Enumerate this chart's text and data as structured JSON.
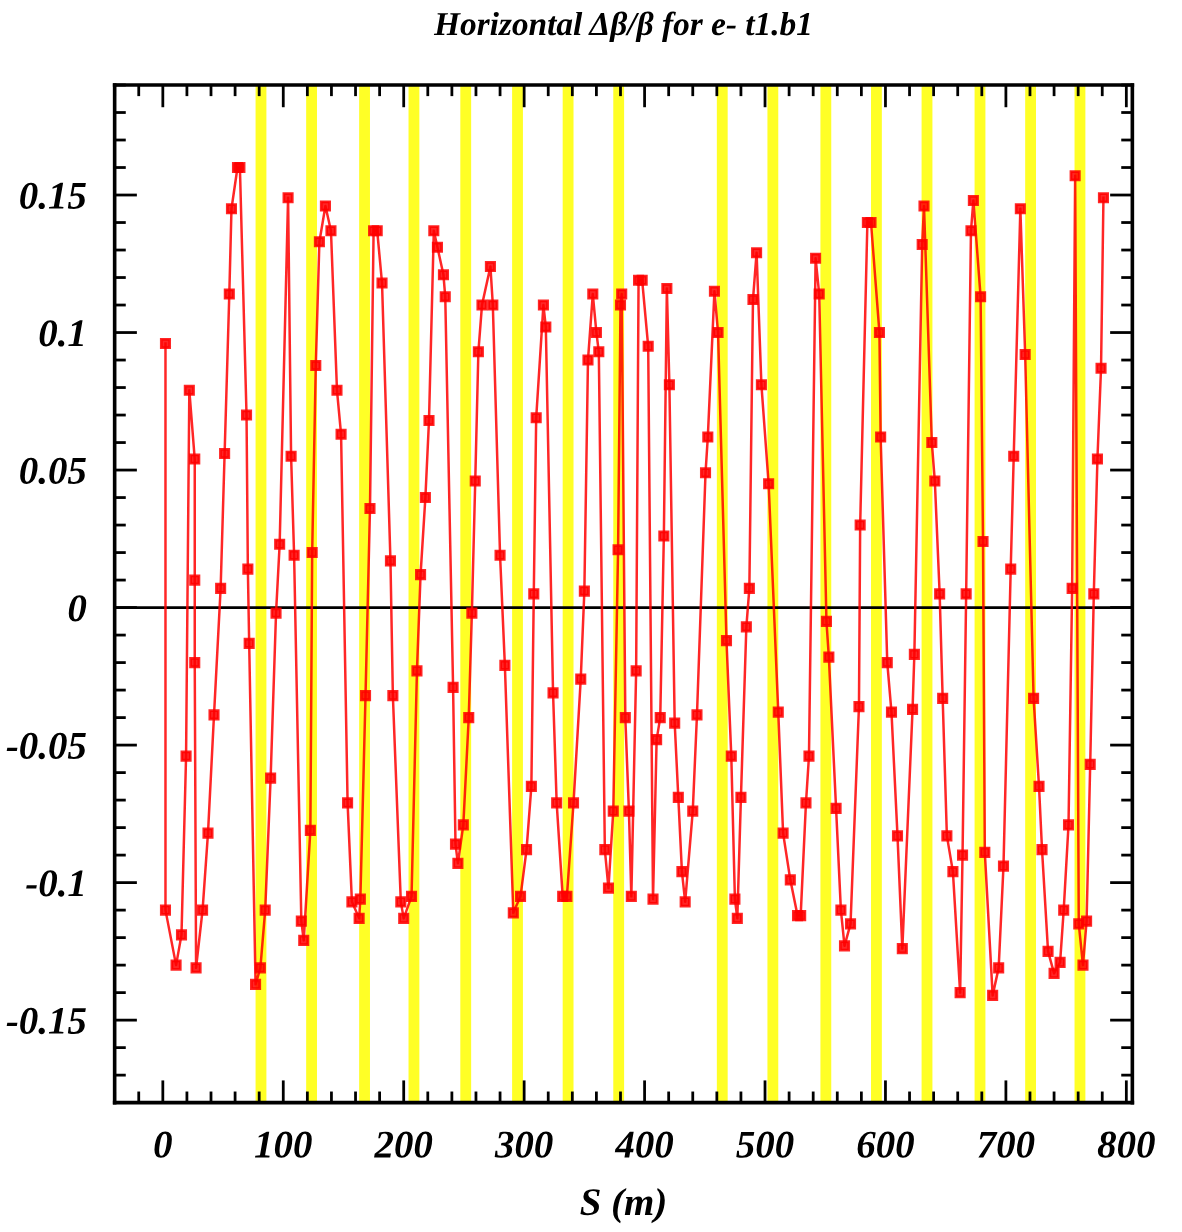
{
  "chart_data": {
    "type": "line",
    "title": "Horizontal Δβ/β for e- t1.b1",
    "xlabel": "S (m)",
    "xlim": [
      -40,
      805
    ],
    "ylim": [
      -0.18,
      0.19
    ],
    "xticks": [
      0,
      100,
      200,
      300,
      400,
      500,
      600,
      700,
      800
    ],
    "yticks": [
      -0.15,
      -0.1,
      -0.05,
      0,
      0.05,
      0.1,
      0.15
    ],
    "grid": false,
    "legend": false,
    "marker": "square",
    "line_style": "solid",
    "ref_lines": [
      {
        "axis": "y",
        "value": 0,
        "color": "#000000"
      }
    ],
    "bands": [
      {
        "axis": "x",
        "from": 77,
        "to": 86,
        "color": "#ffff00"
      },
      {
        "axis": "x",
        "from": 119,
        "to": 128,
        "color": "#ffff00"
      },
      {
        "axis": "x",
        "from": 163,
        "to": 172,
        "color": "#ffff00"
      },
      {
        "axis": "x",
        "from": 204,
        "to": 213,
        "color": "#ffff00"
      },
      {
        "axis": "x",
        "from": 247,
        "to": 256,
        "color": "#ffff00"
      },
      {
        "axis": "x",
        "from": 290,
        "to": 299,
        "color": "#ffff00"
      },
      {
        "axis": "x",
        "from": 332,
        "to": 341,
        "color": "#ffff00"
      },
      {
        "axis": "x",
        "from": 374,
        "to": 383,
        "color": "#ffff00"
      },
      {
        "axis": "x",
        "from": 460,
        "to": 469,
        "color": "#ffff00"
      },
      {
        "axis": "x",
        "from": 502,
        "to": 511,
        "color": "#ffff00"
      },
      {
        "axis": "x",
        "from": 546,
        "to": 555,
        "color": "#ffff00"
      },
      {
        "axis": "x",
        "from": 588,
        "to": 597,
        "color": "#ffff00"
      },
      {
        "axis": "x",
        "from": 630,
        "to": 639,
        "color": "#ffff00"
      },
      {
        "axis": "x",
        "from": 674,
        "to": 683,
        "color": "#ffff00"
      },
      {
        "axis": "x",
        "from": 716,
        "to": 725,
        "color": "#ffff00"
      },
      {
        "axis": "x",
        "from": 757,
        "to": 766,
        "color": "#ffff00"
      }
    ],
    "series": [
      {
        "color": "#ff0000",
        "x": [
          2.2,
          2.2,
          11,
          15.5,
          19.3,
          22,
          26.5,
          26.5,
          26.5,
          27.6,
          33,
          37.5,
          42.5,
          48,
          51.3,
          55.2,
          57,
          62,
          64,
          69.5,
          70.6,
          71.7,
          77,
          81,
          85,
          89.5,
          94,
          97,
          104,
          106.5,
          109,
          115,
          117,
          122.5,
          124,
          127,
          130,
          135,
          139.6,
          144.6,
          148,
          153.4,
          157,
          163,
          164,
          168.3,
          172,
          175,
          178,
          182,
          189,
          191,
          197.6,
          200,
          206.5,
          211,
          214,
          218,
          221,
          225,
          228,
          233,
          234.5,
          241,
          243,
          245,
          249.5,
          254,
          256.6,
          259.4,
          262,
          265,
          272,
          274,
          280,
          284,
          291,
          297,
          302,
          306,
          308,
          310,
          316,
          318,
          324,
          327,
          332,
          335.5,
          341,
          347,
          350,
          353,
          357,
          360,
          362,
          367,
          370,
          374,
          378,
          380,
          381,
          384,
          387,
          389,
          393,
          395,
          398,
          403,
          407,
          410,
          413,
          416,
          418.5,
          420.6,
          425,
          428,
          431,
          433.7,
          440,
          443.5,
          450.6,
          452.5,
          458,
          461,
          468,
          472,
          475,
          477,
          480,
          484.5,
          487,
          490,
          493,
          497,
          503,
          511,
          515,
          521,
          527,
          529.6,
          534,
          536.5,
          542,
          545,
          551,
          553,
          559,
          563,
          566,
          571,
          578,
          579,
          585,
          588,
          595,
          596,
          601.5,
          605,
          610,
          614,
          622.5,
          624,
          630.5,
          632,
          638.5,
          641,
          645,
          647.5,
          651,
          656,
          662,
          664,
          667,
          671,
          673,
          679,
          681,
          682.5,
          689,
          694,
          698,
          704,
          706.5,
          712,
          716,
          723,
          727.5,
          730,
          735,
          740,
          745,
          748,
          752,
          755,
          757.5,
          760.5,
          764,
          767,
          770,
          773,
          776,
          779,
          781
        ],
        "values": [
          0.096,
          -0.11,
          -0.13,
          -0.119,
          -0.054,
          0.079,
          0.054,
          0.01,
          -0.02,
          -0.131,
          -0.11,
          -0.082,
          -0.039,
          0.007,
          0.056,
          0.114,
          0.145,
          0.16,
          0.16,
          0.07,
          0.014,
          -0.013,
          -0.137,
          -0.131,
          -0.11,
          -0.062,
          -0.002,
          0.023,
          0.149,
          0.055,
          0.019,
          -0.114,
          -0.121,
          -0.081,
          0.02,
          0.088,
          0.133,
          0.146,
          0.137,
          0.079,
          0.063,
          -0.071,
          -0.107,
          -0.113,
          -0.106,
          -0.032,
          0.036,
          0.137,
          0.137,
          0.118,
          0.017,
          -0.032,
          -0.107,
          -0.113,
          -0.105,
          -0.023,
          0.012,
          0.04,
          0.068,
          0.137,
          0.131,
          0.121,
          0.113,
          -0.029,
          -0.086,
          -0.093,
          -0.079,
          -0.04,
          -0.002,
          0.046,
          0.093,
          0.11,
          0.124,
          0.11,
          0.019,
          -0.021,
          -0.111,
          -0.105,
          -0.088,
          -0.065,
          0.005,
          0.069,
          0.11,
          0.102,
          -0.031,
          -0.071,
          -0.105,
          -0.105,
          -0.071,
          -0.026,
          0.006,
          0.09,
          0.114,
          0.1,
          0.093,
          -0.088,
          -0.102,
          -0.074,
          0.021,
          0.11,
          0.114,
          -0.04,
          -0.074,
          -0.105,
          -0.023,
          0.119,
          0.119,
          0.095,
          -0.106,
          -0.048,
          -0.04,
          0.026,
          0.116,
          0.081,
          -0.042,
          -0.069,
          -0.096,
          -0.107,
          -0.074,
          -0.039,
          0.049,
          0.062,
          0.115,
          0.1,
          -0.012,
          -0.054,
          -0.106,
          -0.113,
          -0.069,
          -0.007,
          0.007,
          0.112,
          0.129,
          0.081,
          0.045,
          -0.038,
          -0.082,
          -0.099,
          -0.112,
          -0.112,
          -0.071,
          -0.054,
          0.127,
          0.114,
          -0.005,
          -0.018,
          -0.073,
          -0.11,
          -0.123,
          -0.115,
          -0.036,
          0.03,
          0.14,
          0.14,
          0.1,
          0.062,
          -0.02,
          -0.038,
          -0.083,
          -0.124,
          -0.037,
          -0.017,
          0.132,
          0.146,
          0.06,
          0.046,
          0.005,
          -0.033,
          -0.083,
          -0.096,
          -0.14,
          -0.09,
          0.005,
          0.137,
          0.148,
          0.113,
          0.024,
          -0.089,
          -0.141,
          -0.131,
          -0.094,
          0.014,
          0.055,
          0.145,
          0.092,
          -0.033,
          -0.065,
          -0.088,
          -0.125,
          -0.133,
          -0.129,
          -0.11,
          -0.079,
          0.007,
          0.157,
          -0.115,
          -0.13,
          -0.114,
          -0.057,
          0.005,
          0.054,
          0.087,
          0.149
        ]
      }
    ]
  }
}
